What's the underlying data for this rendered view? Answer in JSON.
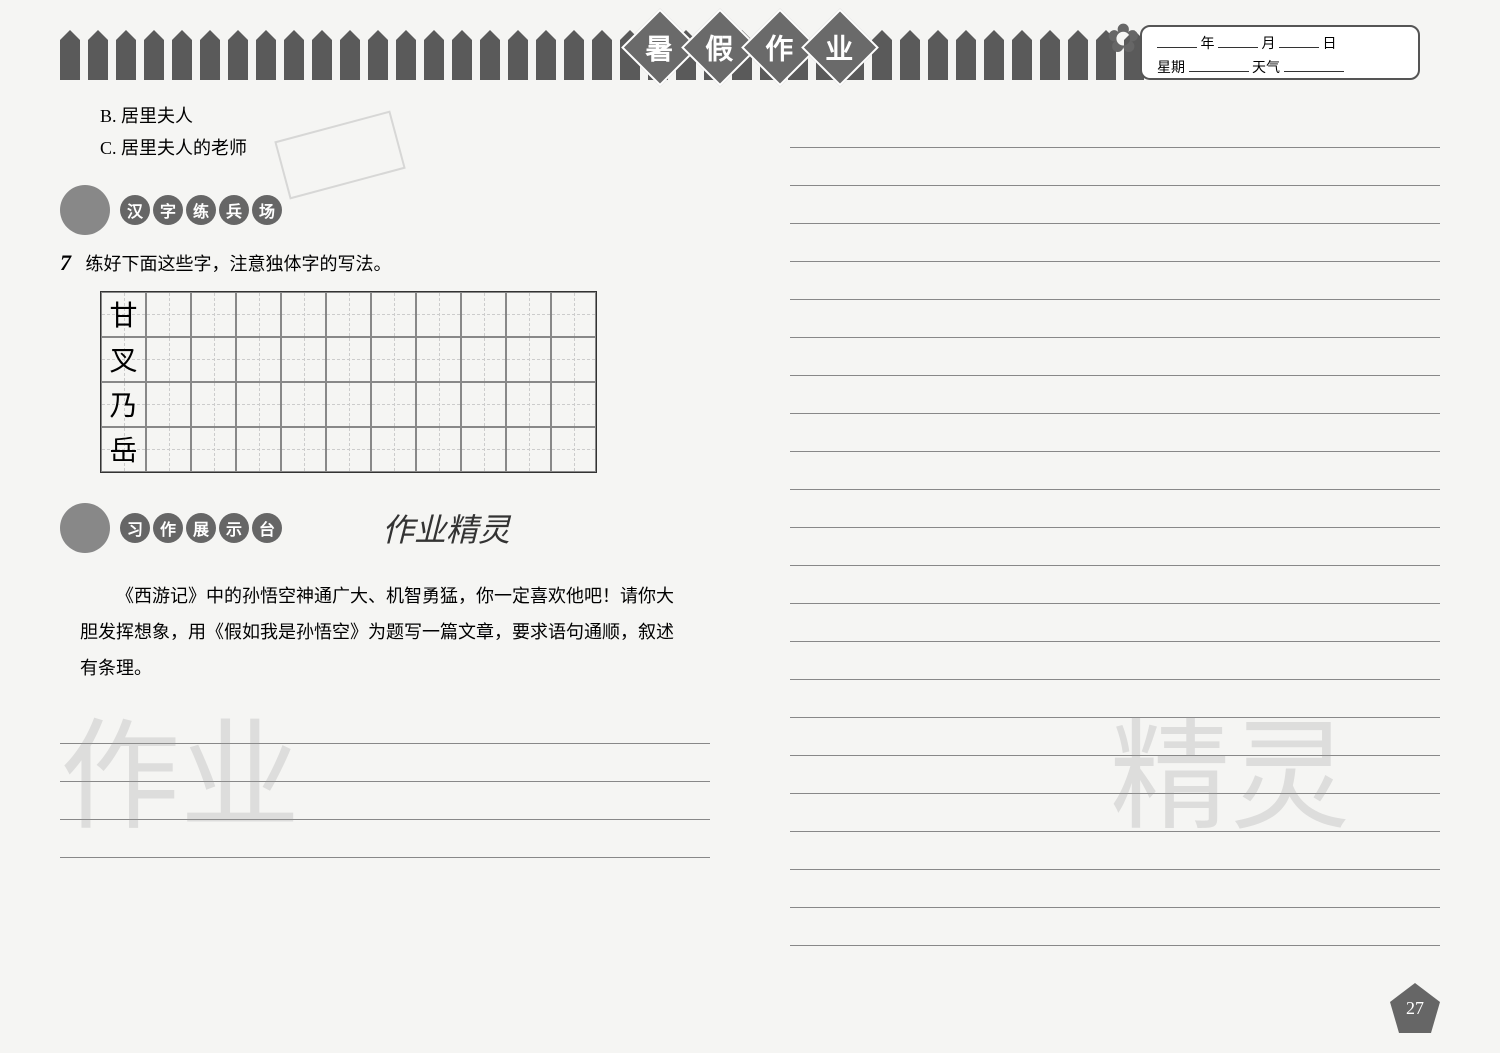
{
  "header": {
    "title_chars": [
      "暑",
      "假",
      "作",
      "业"
    ],
    "date_labels": {
      "year": "年",
      "month": "月",
      "day": "日",
      "weekday": "星期",
      "weather": "天气"
    }
  },
  "left_column": {
    "options": {
      "b": "B. 居里夫人",
      "c": "C. 居里夫人的老师"
    },
    "section1": {
      "title_chars": [
        "汉",
        "字",
        "练",
        "兵",
        "场"
      ],
      "exercise_num": "7",
      "instruction": "练好下面这些字，注意独体字的写法。",
      "practice_chars": [
        "甘",
        "叉",
        "乃",
        "岳"
      ],
      "grid_cols": 11
    },
    "section2": {
      "title_chars": [
        "习",
        "作",
        "展",
        "示",
        "台"
      ],
      "handwritten_note": "作业精灵",
      "prompt": "《西游记》中的孙悟空神通广大、机智勇猛，你一定喜欢他吧！请你大胆发挥想象，用《假如我是孙悟空》为题写一篇文章，要求语句通顺，叙述有条理。"
    }
  },
  "right_column": {
    "line_count": 22
  },
  "left_bottom_lines": 4,
  "watermark_text_1": "作业",
  "watermark_text_2": "精灵",
  "page_number": "27",
  "styling": {
    "background_color": "#f5f5f3",
    "fence_color": "#5a5a5a",
    "diamond_color": "#6a6a6a",
    "text_color": "#333333",
    "line_color": "#888888",
    "grid_border_color": "#888888",
    "watermark_opacity": 0.25,
    "body_font_size": 18,
    "title_char_size": 28,
    "practice_char_size": 28
  }
}
